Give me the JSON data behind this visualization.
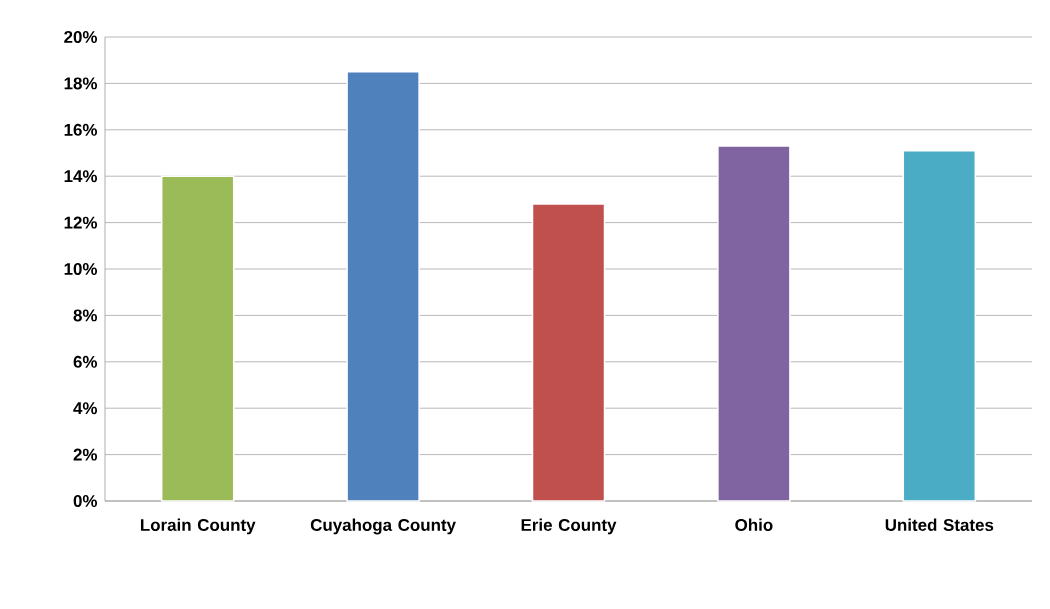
{
  "chart_data": {
    "type": "bar",
    "categories": [
      "Lorain County",
      "Cuyahoga County",
      "Erie County",
      "Ohio",
      "United States"
    ],
    "values": [
      14.0,
      18.5,
      12.8,
      15.3,
      15.1
    ],
    "colors": [
      "#9bbb59",
      "#4f81bd",
      "#c0504d",
      "#8064a2",
      "#4bacc6"
    ],
    "ylim": [
      0,
      20
    ],
    "yticks": [
      {
        "value": 0,
        "label": "0%"
      },
      {
        "value": 2,
        "label": "2%"
      },
      {
        "value": 4,
        "label": "4%"
      },
      {
        "value": 6,
        "label": "6%"
      },
      {
        "value": 8,
        "label": "8%"
      },
      {
        "value": 10,
        "label": "10%"
      },
      {
        "value": 12,
        "label": "12%"
      },
      {
        "value": 14,
        "label": "14%"
      },
      {
        "value": 16,
        "label": "16%"
      },
      {
        "value": 18,
        "label": "18%"
      },
      {
        "value": 20,
        "label": "20%"
      }
    ],
    "grid": "y"
  }
}
